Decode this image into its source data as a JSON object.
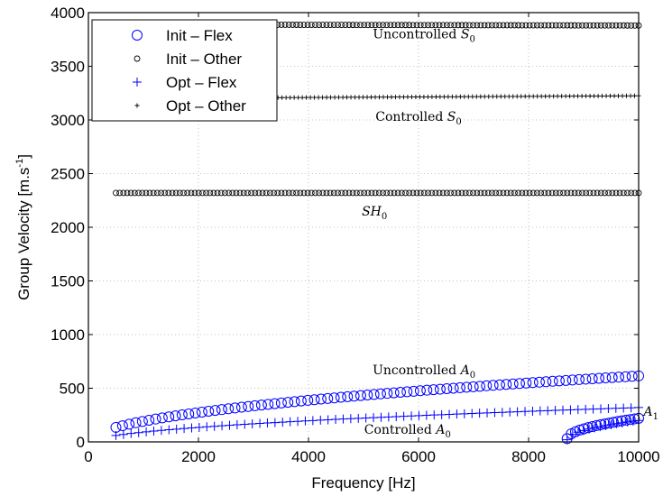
{
  "chart_data": {
    "type": "scatter",
    "xlabel": "Frequency [Hz]",
    "ylabel_main": "Group Velocity [m.s",
    "ylabel_sup": "-1",
    "ylabel_end": "]",
    "xlim": [
      0,
      10000
    ],
    "ylim": [
      0,
      4000
    ],
    "x_ticks": [
      0,
      2000,
      4000,
      6000,
      8000,
      10000
    ],
    "y_ticks": [
      0,
      500,
      1000,
      1500,
      2000,
      2500,
      3000,
      3500,
      4000
    ],
    "x_tick_labels": [
      "0",
      "2000",
      "4000",
      "6000",
      "8000",
      "10000"
    ],
    "y_tick_labels": [
      "0",
      "500",
      "1000",
      "1500",
      "2000",
      "2500",
      "3000",
      "3500",
      "4000"
    ],
    "grid": true,
    "legend_position": "top-left",
    "legend": [
      {
        "label": "Init – Flex",
        "marker": "circle-large",
        "color": "#0000ff"
      },
      {
        "label": "Init – Other",
        "marker": "circle-small",
        "color": "#000000"
      },
      {
        "label": "Opt – Flex",
        "marker": "plus-large",
        "color": "#0000ff"
      },
      {
        "label": "Opt – Other",
        "marker": "plus-small",
        "color": "#000000"
      }
    ],
    "series": [
      {
        "name": "Init – Flex",
        "mode": "Uncontrolled A0",
        "marker": "circle-large",
        "color": "#0000ff",
        "x_start": 500,
        "x_end": 10000,
        "count": 80,
        "curve": "sqrt",
        "y_start": 135,
        "y_end": 615
      },
      {
        "name": "Init – Flex",
        "mode": "A1",
        "marker": "circle-large",
        "color": "#0000ff",
        "x_start": 8700,
        "x_end": 10000,
        "count": 18,
        "curve": "sqrt-onset",
        "y_start": 30,
        "y_end": 220
      },
      {
        "name": "Init – Other",
        "mode": "Uncontrolled S0",
        "marker": "circle-small",
        "color": "#000000",
        "x_start": 500,
        "x_end": 10000,
        "count": 140,
        "curve": "linear",
        "y_start": 3890,
        "y_end": 3880
      },
      {
        "name": "Init – Other",
        "mode": "SH0",
        "marker": "circle-small",
        "color": "#000000",
        "x_start": 500,
        "x_end": 10000,
        "count": 140,
        "curve": "linear",
        "y_start": 2320,
        "y_end": 2320
      },
      {
        "name": "Opt – Flex",
        "mode": "Controlled A0",
        "marker": "plus-large",
        "color": "#0000ff",
        "x_start": 500,
        "x_end": 10000,
        "count": 70,
        "curve": "sqrt",
        "y_start": 60,
        "y_end": 320
      },
      {
        "name": "Opt – Flex",
        "mode": "A1",
        "marker": "plus-large",
        "color": "#0000ff",
        "x_start": 8700,
        "x_end": 10000,
        "count": 14,
        "curve": "sqrt-onset",
        "y_start": 20,
        "y_end": 200
      },
      {
        "name": "Opt – Other",
        "mode": "Controlled S0",
        "marker": "plus-small",
        "color": "#000000",
        "x_start": 500,
        "x_end": 10000,
        "count": 130,
        "curve": "linear",
        "y_start": 3200,
        "y_end": 3225
      }
    ],
    "annotations": [
      {
        "text": "Uncontrolled ",
        "math": "S",
        "sub": "0",
        "x": 6100,
        "y": 3760
      },
      {
        "text": "Controlled ",
        "math": "S",
        "sub": "0",
        "x": 6000,
        "y": 2990
      },
      {
        "text": "",
        "math": "SH",
        "sub": "0",
        "x": 5200,
        "y": 2110
      },
      {
        "text": "Uncontrolled ",
        "math": "A",
        "sub": "0",
        "x": 6100,
        "y": 630
      },
      {
        "text": "Controlled ",
        "math": "A",
        "sub": "0",
        "x": 5800,
        "y": 75
      },
      {
        "text": "",
        "math": "A",
        "sub": "1",
        "x": 10090,
        "y": 245,
        "anchor": "start"
      }
    ]
  }
}
